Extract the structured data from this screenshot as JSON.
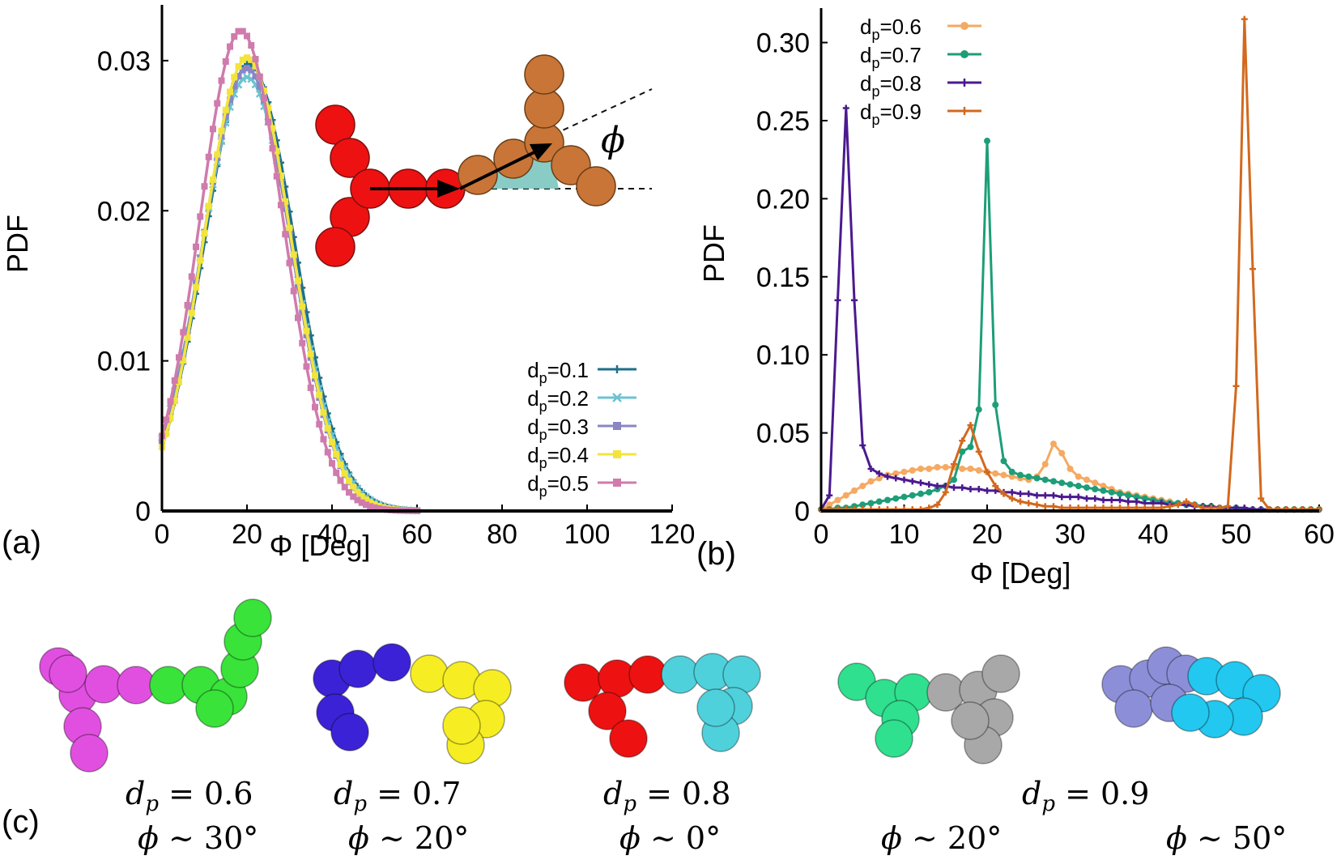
{
  "panel_labels": {
    "a": "(a)",
    "b": "(b)",
    "c": "(c)"
  },
  "chart_data": [
    {
      "id": "a",
      "type": "line",
      "title": "",
      "xlabel": "Φ [Deg]",
      "ylabel": "PDF",
      "xlim": [
        0,
        120
      ],
      "ylim": [
        0,
        0.0335
      ],
      "xticks": [
        "0",
        "20",
        "40",
        "60",
        "80",
        "100",
        "120"
      ],
      "yticks": [
        "0",
        "0.01",
        "0.02",
        "0.03"
      ],
      "legend_position": "bottom-right",
      "grid": false,
      "inset_phi_label": "ϕ",
      "series": [
        {
          "name": "d",
          "sub": "p",
          "rest": "=0.1",
          "color": "#1f6f8b",
          "marker": "plus",
          "peak": 0.0298,
          "mu": 20.5,
          "sigmaL": 10.4,
          "sigmaR": 10.6
        },
        {
          "name": "d",
          "sub": "p",
          "rest": "=0.2",
          "color": "#6cc3d1",
          "marker": "cross",
          "peak": 0.0289,
          "mu": 20.0,
          "sigmaL": 10.6,
          "sigmaR": 10.7
        },
        {
          "name": "d",
          "sub": "p",
          "rest": "=0.3",
          "color": "#8a86c4",
          "marker": "square",
          "peak": 0.0295,
          "mu": 20.0,
          "sigmaL": 10.4,
          "sigmaR": 10.3
        },
        {
          "name": "d",
          "sub": "p",
          "rest": "=0.4",
          "color": "#f2e43d",
          "marker": "square",
          "peak": 0.0302,
          "mu": 20.0,
          "sigmaL": 10.1,
          "sigmaR": 10.3
        },
        {
          "name": "d",
          "sub": "p",
          "rest": "=0.5",
          "color": "#cf7bad",
          "marker": "square",
          "peak": 0.032,
          "mu": 18.5,
          "sigmaL": 9.6,
          "sigmaR": 10.0
        }
      ]
    },
    {
      "id": "b",
      "type": "line",
      "title": "",
      "xlabel": "Φ [Deg]",
      "ylabel": "PDF",
      "xlim": [
        0,
        60
      ],
      "ylim": [
        0,
        0.32
      ],
      "xticks": [
        "0",
        "10",
        "20",
        "30",
        "40",
        "50",
        "60"
      ],
      "yticks": [
        "0",
        "0.05",
        "0.10",
        "0.15",
        "0.20",
        "0.25",
        "0.30"
      ],
      "legend_position": "top-left",
      "grid": false,
      "series": [
        {
          "name": "d",
          "sub": "p",
          "rest": "=0.6",
          "color": "#f5a962",
          "marker": "circle",
          "x": [
            0,
            1,
            2,
            3,
            4,
            5,
            6,
            7,
            8,
            9,
            10,
            11,
            12,
            13,
            14,
            15,
            16,
            17,
            18,
            19,
            20,
            21,
            22,
            23,
            24,
            25,
            26,
            27,
            28,
            29,
            30,
            31,
            32,
            33,
            34,
            35,
            36,
            37,
            38,
            39,
            40,
            41,
            42,
            43,
            44,
            45,
            46,
            47,
            48,
            49,
            50,
            51,
            52,
            53,
            54,
            55,
            56,
            57,
            58,
            59,
            60
          ],
          "y": [
            0.001,
            0.004,
            0.007,
            0.01,
            0.013,
            0.016,
            0.019,
            0.021,
            0.023,
            0.024,
            0.025,
            0.026,
            0.027,
            0.027,
            0.028,
            0.028,
            0.028,
            0.027,
            0.027,
            0.026,
            0.025,
            0.024,
            0.023,
            0.022,
            0.021,
            0.02,
            0.022,
            0.03,
            0.043,
            0.037,
            0.027,
            0.022,
            0.02,
            0.018,
            0.016,
            0.014,
            0.012,
            0.011,
            0.01,
            0.009,
            0.008,
            0.007,
            0.006,
            0.005,
            0.004,
            0.004,
            0.003,
            0.003,
            0.002,
            0.002,
            0.002,
            0.001,
            0.001,
            0.001,
            0.001,
            0.001,
            0.001,
            0.001,
            0.001,
            0.001,
            0.001
          ]
        },
        {
          "name": "d",
          "sub": "p",
          "rest": "=0.7",
          "color": "#1d9e78",
          "marker": "circle",
          "x": [
            0,
            1,
            2,
            3,
            4,
            5,
            6,
            7,
            8,
            9,
            10,
            11,
            12,
            13,
            14,
            15,
            16,
            17,
            18,
            19,
            20,
            21,
            22,
            23,
            24,
            25,
            26,
            27,
            28,
            29,
            30,
            31,
            32,
            33,
            34,
            35,
            36,
            37,
            38,
            39,
            40,
            41,
            42,
            43,
            44,
            45,
            46,
            47,
            48,
            49,
            50,
            51,
            52,
            53,
            54,
            55,
            56,
            57,
            58,
            59,
            60
          ],
          "y": [
            0.001,
            0.001,
            0.002,
            0.002,
            0.003,
            0.004,
            0.005,
            0.006,
            0.007,
            0.008,
            0.009,
            0.01,
            0.011,
            0.012,
            0.014,
            0.016,
            0.02,
            0.038,
            0.041,
            0.065,
            0.237,
            0.068,
            0.032,
            0.025,
            0.023,
            0.022,
            0.021,
            0.02,
            0.019,
            0.018,
            0.017,
            0.016,
            0.015,
            0.014,
            0.013,
            0.012,
            0.011,
            0.01,
            0.009,
            0.008,
            0.007,
            0.006,
            0.005,
            0.005,
            0.004,
            0.004,
            0.003,
            0.003,
            0.002,
            0.002,
            0.002,
            0.001,
            0.001,
            0.001,
            0.001,
            0.001,
            0.001,
            0.001,
            0.001,
            0.001,
            0.001
          ]
        },
        {
          "name": "d",
          "sub": "p",
          "rest": "=0.8",
          "color": "#4b1a8f",
          "marker": "plus",
          "x": [
            0,
            1,
            2,
            3,
            4,
            5,
            6,
            7,
            8,
            9,
            10,
            11,
            12,
            13,
            14,
            15,
            16,
            17,
            18,
            19,
            20,
            21,
            22,
            23,
            24,
            25,
            26,
            27,
            28,
            29,
            30,
            31,
            32,
            33,
            34,
            35,
            36,
            37,
            38,
            39,
            40,
            41,
            42,
            43,
            44,
            45,
            46,
            47,
            48,
            49,
            50,
            51,
            52,
            53,
            54,
            55,
            56,
            57,
            58,
            59,
            60
          ],
          "y": [
            0.001,
            0.01,
            0.135,
            0.258,
            0.135,
            0.042,
            0.027,
            0.024,
            0.022,
            0.021,
            0.02,
            0.019,
            0.018,
            0.017,
            0.016,
            0.016,
            0.015,
            0.015,
            0.014,
            0.014,
            0.013,
            0.013,
            0.012,
            0.012,
            0.011,
            0.011,
            0.01,
            0.01,
            0.01,
            0.009,
            0.009,
            0.009,
            0.008,
            0.008,
            0.007,
            0.007,
            0.007,
            0.006,
            0.006,
            0.005,
            0.005,
            0.005,
            0.004,
            0.004,
            0.004,
            0.003,
            0.003,
            0.003,
            0.002,
            0.002,
            0.002,
            0.002,
            0.001,
            0.001,
            0.001,
            0.001,
            0.001,
            0.001,
            0.001,
            0.001,
            0.001
          ]
        },
        {
          "name": "d",
          "sub": "p",
          "rest": "=0.9",
          "color": "#d2691e",
          "marker": "plus",
          "x": [
            0,
            1,
            2,
            3,
            4,
            5,
            6,
            7,
            8,
            9,
            10,
            11,
            12,
            13,
            14,
            15,
            16,
            17,
            18,
            19,
            20,
            21,
            22,
            23,
            24,
            25,
            26,
            27,
            28,
            29,
            30,
            31,
            32,
            33,
            34,
            35,
            36,
            37,
            38,
            39,
            40,
            41,
            42,
            43,
            44,
            45,
            46,
            47,
            48,
            49,
            50,
            51,
            52,
            53,
            54,
            55,
            56,
            57,
            58,
            59,
            60
          ],
          "y": [
            0.001,
            0.001,
            0.001,
            0.001,
            0.001,
            0.001,
            0.001,
            0.001,
            0.001,
            0.001,
            0.001,
            0.001,
            0.001,
            0.002,
            0.004,
            0.012,
            0.03,
            0.045,
            0.055,
            0.038,
            0.025,
            0.016,
            0.011,
            0.008,
            0.006,
            0.005,
            0.004,
            0.003,
            0.003,
            0.002,
            0.002,
            0.002,
            0.002,
            0.002,
            0.002,
            0.002,
            0.002,
            0.002,
            0.002,
            0.002,
            0.002,
            0.002,
            0.003,
            0.004,
            0.006,
            0.004,
            0.002,
            0.002,
            0.002,
            0.003,
            0.08,
            0.315,
            0.155,
            0.008,
            0.001,
            0.001,
            0.001,
            0.001,
            0.001,
            0.001,
            0.001
          ]
        }
      ]
    }
  ],
  "snapshots": [
    {
      "id": "s06",
      "colorA": "#e14fe0",
      "colorB": "#39e33a"
    },
    {
      "id": "s07",
      "colorA": "#3c22d6",
      "colorB": "#f6ee22"
    },
    {
      "id": "s08",
      "colorA": "#ee1111",
      "colorB": "#4fd1dc"
    },
    {
      "id": "s09a",
      "colorA": "#2fe08f",
      "colorB": "#a8a8a8"
    },
    {
      "id": "s09b",
      "colorA": "#8c8fd8",
      "colorB": "#22c8f0"
    }
  ],
  "captions": [
    {
      "dp_var": "d",
      "dp_sub": "p",
      "dp_eq": " = 0.6",
      "phi_var": "ϕ",
      "phi_rest": " ∼ 30°"
    },
    {
      "dp_var": "d",
      "dp_sub": "p",
      "dp_eq": " = 0.7",
      "phi_var": "ϕ",
      "phi_rest": " ∼ 20°"
    },
    {
      "dp_var": "d",
      "dp_sub": "p",
      "dp_eq": " = 0.8",
      "phi_var": "ϕ",
      "phi_rest": " ∼ 0°"
    },
    {
      "dp_var": "d",
      "dp_sub": "p",
      "dp_eq": " = 0.9",
      "phi_var": "ϕ",
      "phi_rest": " ∼ 20°"
    },
    {
      "phi_var": "ϕ",
      "phi_rest": " ∼ 50°"
    }
  ]
}
